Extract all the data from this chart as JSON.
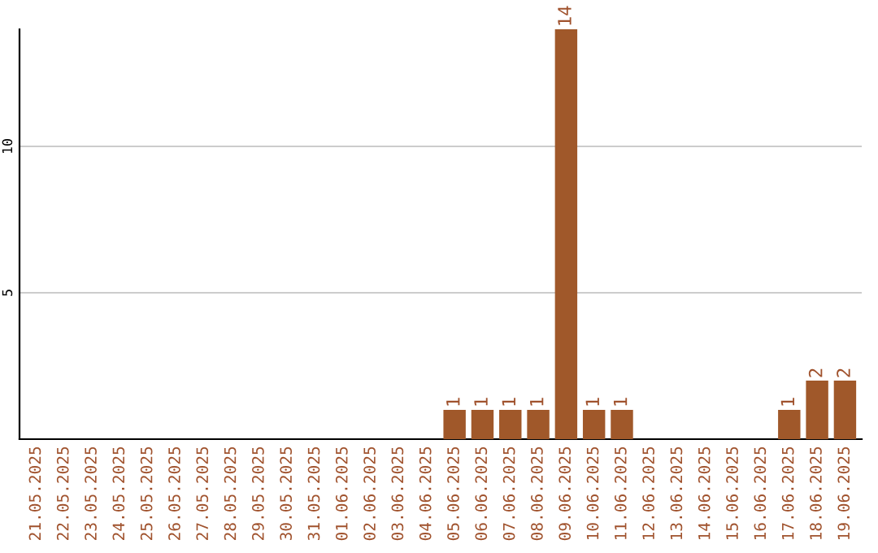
{
  "chart_data": {
    "type": "bar",
    "categories": [
      "21.05.2025",
      "22.05.2025",
      "23.05.2025",
      "24.05.2025",
      "25.05.2025",
      "26.05.2025",
      "27.05.2025",
      "28.05.2025",
      "29.05.2025",
      "30.05.2025",
      "31.05.2025",
      "01.06.2025",
      "02.06.2025",
      "03.06.2025",
      "04.06.2025",
      "05.06.2025",
      "06.06.2025",
      "07.06.2025",
      "08.06.2025",
      "09.06.2025",
      "10.06.2025",
      "11.06.2025",
      "12.06.2025",
      "13.06.2025",
      "14.06.2025",
      "15.06.2025",
      "16.06.2025",
      "17.06.2025",
      "18.06.2025",
      "19.06.2025"
    ],
    "values": [
      0,
      0,
      0,
      0,
      0,
      0,
      0,
      0,
      0,
      0,
      0,
      0,
      0,
      0,
      0,
      1,
      1,
      1,
      1,
      14,
      1,
      1,
      0,
      0,
      0,
      0,
      0,
      1,
      2,
      2
    ],
    "value_labels": [
      null,
      null,
      null,
      null,
      null,
      null,
      null,
      null,
      null,
      null,
      null,
      null,
      null,
      null,
      null,
      "1",
      "1",
      "1",
      "1",
      "14",
      "1",
      "1",
      null,
      null,
      null,
      null,
      null,
      "1",
      "2",
      "2"
    ],
    "color": "#a0582a",
    "ylim": [
      0,
      14
    ],
    "yticks": [
      5,
      10
    ],
    "grid": "y"
  }
}
